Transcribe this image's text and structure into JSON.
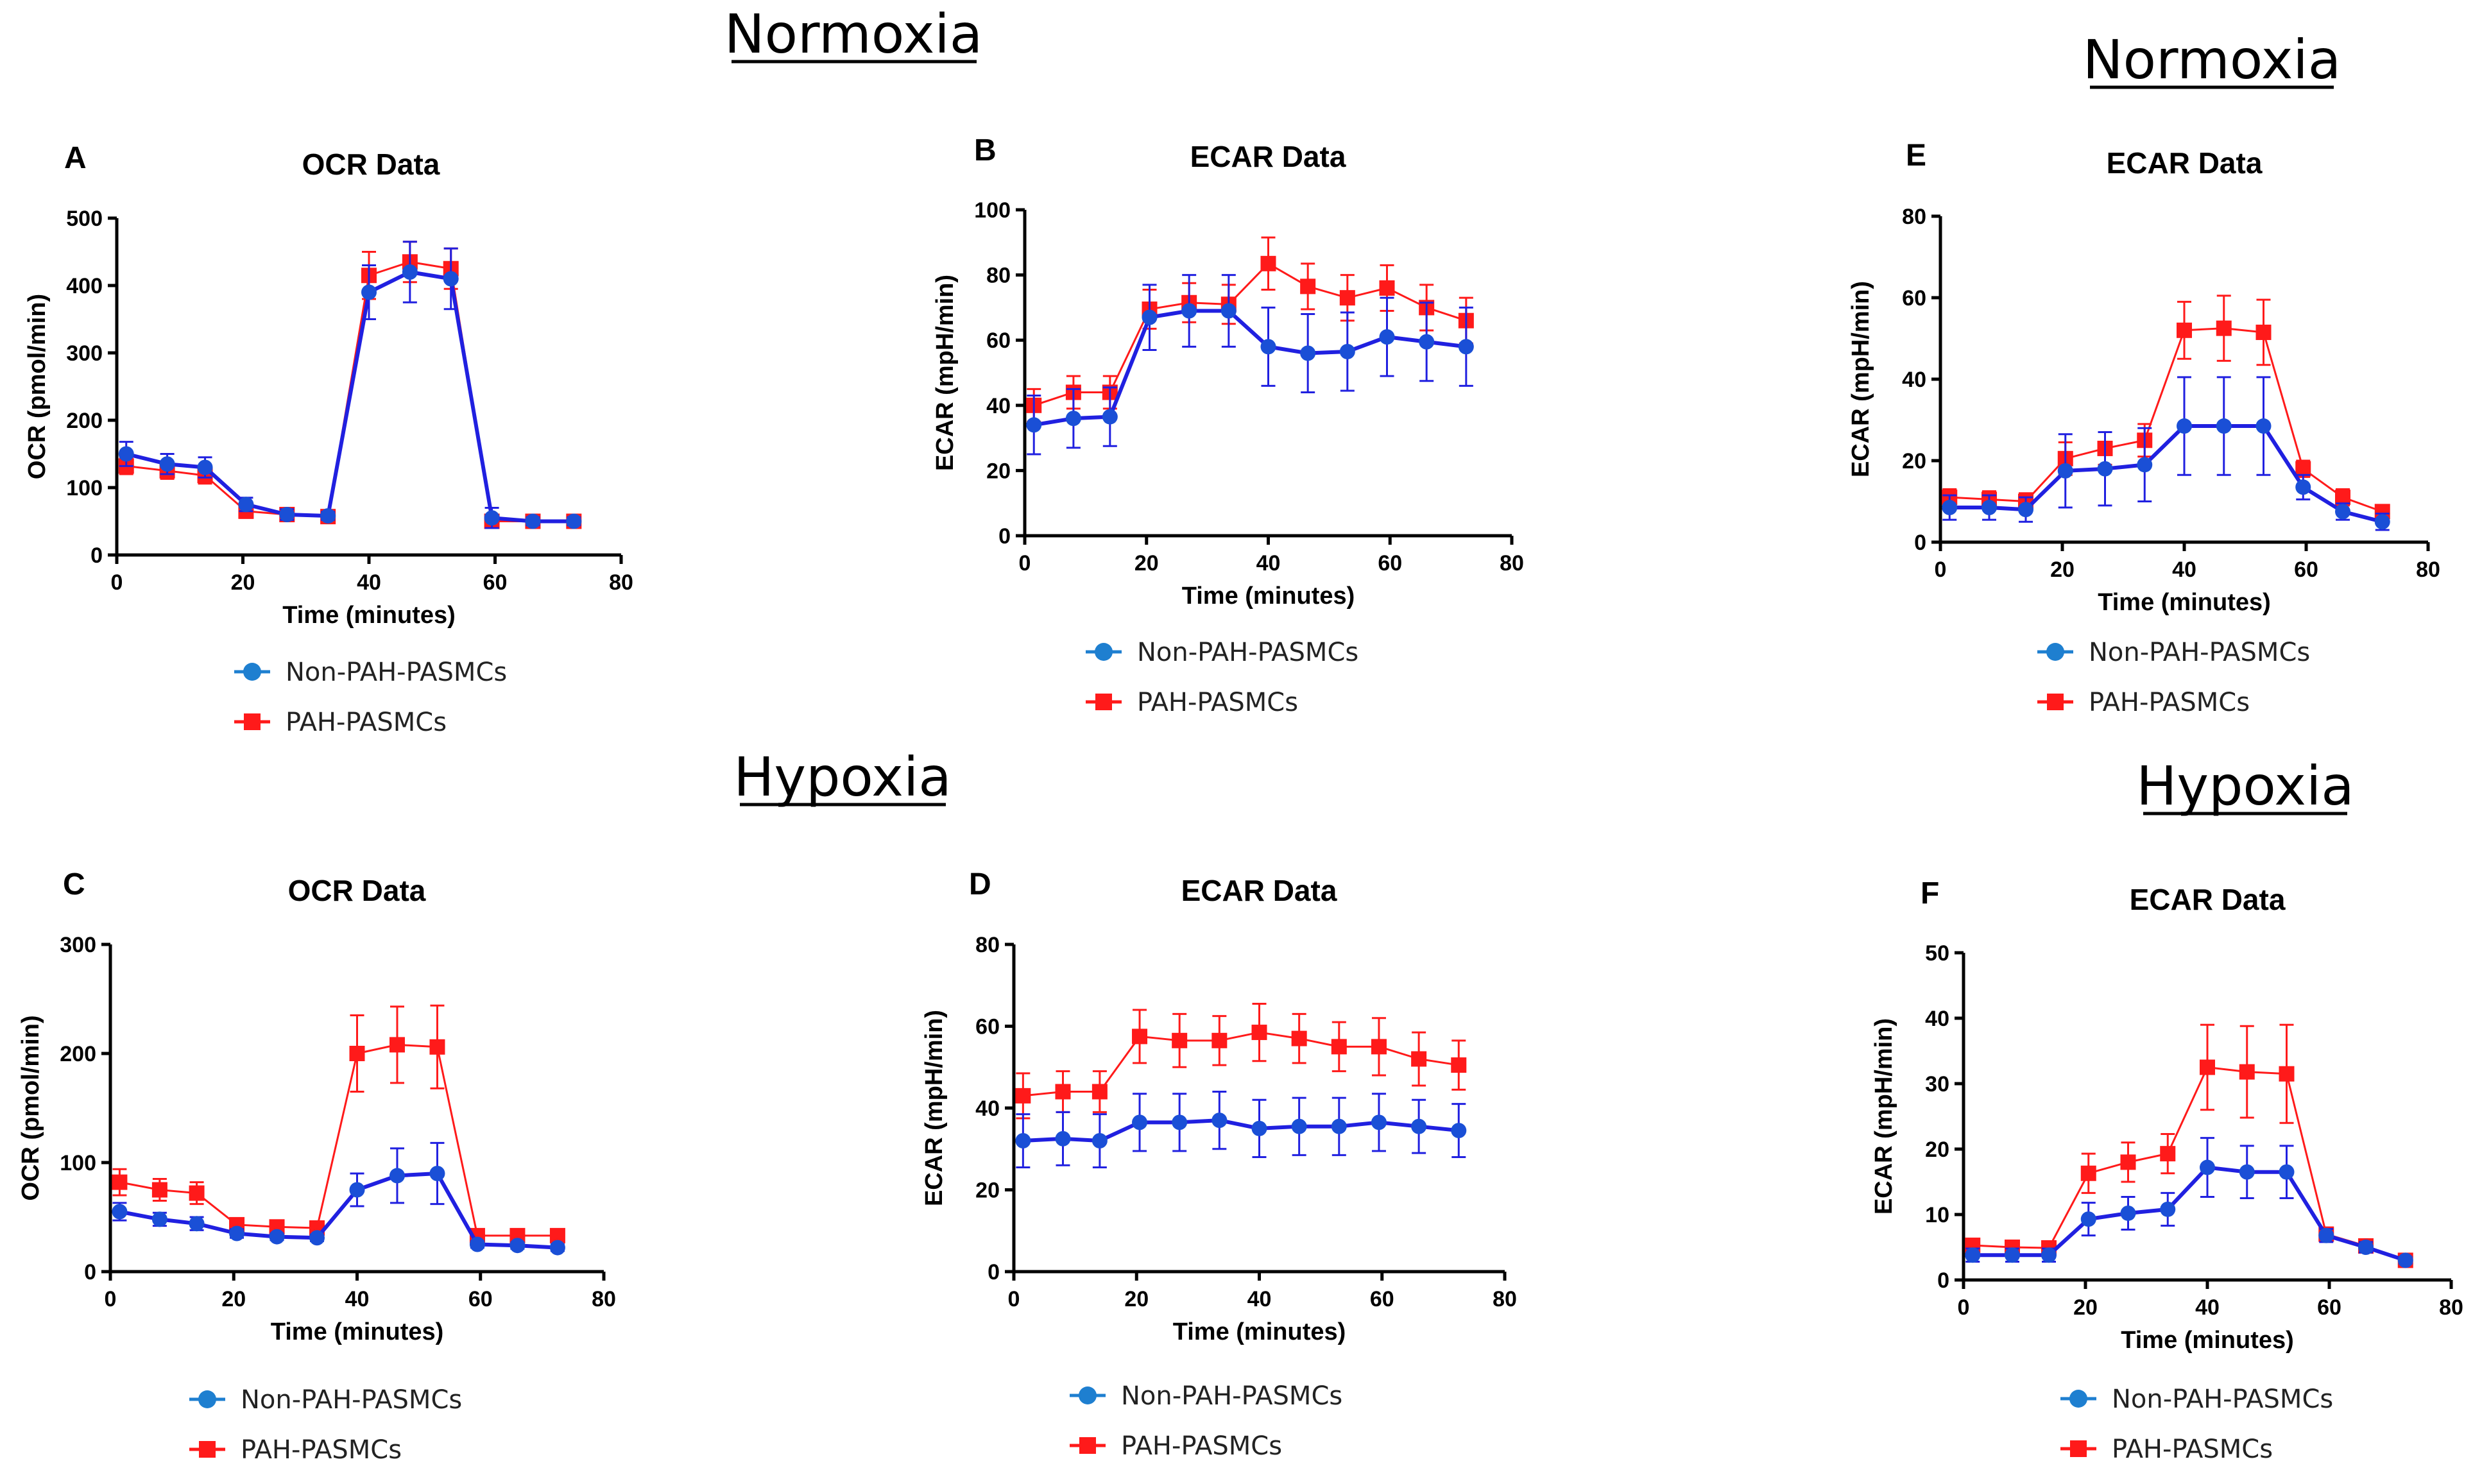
{
  "headings": {
    "top_left": "Normoxia",
    "top_right": "Normoxia",
    "bottom_left": "Hypoxia",
    "bottom_right": "Hypoxia"
  },
  "colors": {
    "non_pah_marker": "#1a4fd6",
    "non_pah_line": "#2020e0",
    "non_pah_legend": "#1e7fd0",
    "pah": "#ff1a1a"
  },
  "legend": {
    "non_pah": "Non-PAH-PASMCs",
    "pah": "PAH-PASMCs"
  },
  "chart_data": [
    {
      "panel": "A",
      "type": "line",
      "title": "OCR Data",
      "xlabel": "Time (minutes)",
      "ylabel": "OCR (pmol/min)",
      "xlim": [
        0,
        80
      ],
      "ylim": [
        0,
        500
      ],
      "xticks": [
        0,
        20,
        40,
        60,
        80
      ],
      "yticks": [
        0,
        100,
        200,
        300,
        400,
        500
      ],
      "x": [
        1.5,
        8,
        14,
        20.5,
        27,
        33.5,
        40,
        46.5,
        53,
        59.5,
        66,
        72.5
      ],
      "series": [
        {
          "name": "Non-PAH-PASMCs",
          "values": [
            150,
            135,
            130,
            75,
            60,
            58,
            390,
            420,
            410,
            55,
            50,
            50
          ],
          "errors": [
            18,
            15,
            15,
            10,
            8,
            6,
            40,
            45,
            45,
            15,
            6,
            6
          ]
        },
        {
          "name": "PAH-PASMCs",
          "values": [
            132,
            125,
            118,
            65,
            60,
            57,
            415,
            435,
            425,
            50,
            50,
            50
          ],
          "errors": [
            12,
            12,
            12,
            10,
            8,
            5,
            35,
            30,
            30,
            8,
            5,
            5
          ]
        }
      ]
    },
    {
      "panel": "B",
      "type": "line",
      "title": "ECAR Data",
      "xlabel": "Time (minutes)",
      "ylabel": "ECAR (mpH/min)",
      "xlim": [
        0,
        80
      ],
      "ylim": [
        0,
        100
      ],
      "xticks": [
        0,
        20,
        40,
        60,
        80
      ],
      "yticks": [
        0,
        20,
        40,
        60,
        80,
        100
      ],
      "x": [
        1.5,
        8,
        14,
        20.5,
        27,
        33.5,
        40,
        46.5,
        53,
        59.5,
        66,
        72.5
      ],
      "series": [
        {
          "name": "Non-PAH-PASMCs",
          "values": [
            34,
            36,
            36.5,
            67,
            69,
            69,
            58,
            56,
            56.5,
            61,
            59.5,
            58
          ],
          "errors": [
            9,
            9,
            9,
            10,
            11,
            11,
            12,
            12,
            12,
            12,
            12,
            12
          ]
        },
        {
          "name": "PAH-PASMCs",
          "values": [
            40,
            44,
            44,
            69.5,
            71.5,
            71,
            83.5,
            76.5,
            73,
            76,
            70,
            66
          ],
          "errors": [
            5,
            5,
            5,
            6,
            6,
            6,
            8,
            7,
            7,
            7,
            7,
            7
          ]
        }
      ]
    },
    {
      "panel": "E",
      "type": "line",
      "title": "ECAR Data",
      "xlabel": "Time (minutes)",
      "ylabel": "ECAR (mpH/min)",
      "xlim": [
        0,
        80
      ],
      "ylim": [
        0,
        80
      ],
      "xticks": [
        0,
        20,
        40,
        60,
        80
      ],
      "yticks": [
        0,
        20,
        40,
        60,
        80
      ],
      "x": [
        1.5,
        8,
        14,
        20.5,
        27,
        33.5,
        40,
        46.5,
        53,
        59.5,
        66,
        72.5
      ],
      "series": [
        {
          "name": "Non-PAH-PASMCs",
          "values": [
            8.5,
            8.5,
            8,
            17.5,
            18,
            19,
            28.5,
            28.5,
            28.5,
            13.5,
            7.5,
            5
          ],
          "errors": [
            3,
            3,
            3,
            9,
            9,
            9,
            12,
            12,
            12,
            3,
            2,
            2
          ]
        },
        {
          "name": "PAH-PASMCs",
          "values": [
            11,
            10.5,
            10,
            20.5,
            23,
            25,
            52,
            52.5,
            51.5,
            18,
            11,
            7.5
          ],
          "errors": [
            2,
            2,
            2,
            4,
            4,
            4,
            7,
            8,
            8,
            2,
            2,
            1
          ]
        }
      ]
    },
    {
      "panel": "C",
      "type": "line",
      "title": "OCR Data",
      "xlabel": "Time (minutes)",
      "ylabel": "OCR (pmol/min)",
      "xlim": [
        0,
        80
      ],
      "ylim": [
        0,
        300
      ],
      "xticks": [
        0,
        20,
        40,
        60,
        80
      ],
      "yticks": [
        0,
        100,
        200,
        300
      ],
      "x": [
        1.5,
        8,
        14,
        20.5,
        27,
        33.5,
        40,
        46.5,
        53,
        59.5,
        66,
        72.5
      ],
      "series": [
        {
          "name": "Non-PAH-PASMCs",
          "values": [
            55,
            48,
            44,
            35,
            32,
            31,
            75,
            88,
            90,
            25,
            24,
            22
          ],
          "errors": [
            8,
            6,
            6,
            4,
            3,
            3,
            15,
            25,
            28,
            3,
            3,
            3
          ]
        },
        {
          "name": "PAH-PASMCs",
          "values": [
            82,
            75,
            72,
            43,
            41,
            40,
            200,
            208,
            206,
            33,
            33,
            33
          ],
          "errors": [
            12,
            10,
            10,
            6,
            5,
            5,
            35,
            35,
            38,
            5,
            5,
            5
          ]
        }
      ]
    },
    {
      "panel": "D",
      "type": "line",
      "title": "ECAR Data",
      "xlabel": "Time (minutes)",
      "ylabel": "ECAR (mpH/min)",
      "xlim": [
        0,
        80
      ],
      "ylim": [
        0,
        80
      ],
      "xticks": [
        0,
        20,
        40,
        60,
        80
      ],
      "yticks": [
        0,
        20,
        40,
        60,
        80
      ],
      "x": [
        1.5,
        8,
        14,
        20.5,
        27,
        33.5,
        40,
        46.5,
        53,
        59.5,
        66,
        72.5
      ],
      "series": [
        {
          "name": "Non-PAH-PASMCs",
          "values": [
            32,
            32.5,
            32,
            36.5,
            36.5,
            37,
            35,
            35.5,
            35.5,
            36.5,
            35.5,
            34.5
          ],
          "errors": [
            6.5,
            6.5,
            6.5,
            7,
            7,
            7,
            7,
            7,
            7,
            7,
            6.5,
            6.5
          ]
        },
        {
          "name": "PAH-PASMCs",
          "values": [
            43,
            44,
            44,
            57.5,
            56.5,
            56.5,
            58.5,
            57,
            55,
            55,
            52,
            50.5
          ],
          "errors": [
            5.5,
            5,
            5,
            6.5,
            6.5,
            6,
            7,
            6,
            6,
            7,
            6.5,
            6
          ]
        }
      ]
    },
    {
      "panel": "F",
      "type": "line",
      "title": "ECAR Data",
      "xlabel": "Time (minutes)",
      "ylabel": "ECAR (mpH/min)",
      "xlim": [
        0,
        80
      ],
      "ylim": [
        0,
        50
      ],
      "xticks": [
        0,
        20,
        40,
        60,
        80
      ],
      "yticks": [
        0,
        10,
        20,
        30,
        40,
        50
      ],
      "x": [
        1.5,
        8,
        14,
        20.5,
        27,
        33.5,
        40,
        46.5,
        53,
        59.5,
        66,
        72.5
      ],
      "series": [
        {
          "name": "Non-PAH-PASMCs",
          "values": [
            3.8,
            3.8,
            3.8,
            9.3,
            10.2,
            10.8,
            17.2,
            16.5,
            16.5,
            6.8,
            5,
            3
          ],
          "errors": [
            1,
            1,
            1,
            2.5,
            2.5,
            2.5,
            4.5,
            4,
            4,
            1,
            0.8,
            0.5
          ]
        },
        {
          "name": "PAH-PASMCs",
          "values": [
            5.3,
            5,
            4.9,
            16.3,
            18,
            19.3,
            32.5,
            31.8,
            31.5,
            7,
            5.2,
            3
          ],
          "errors": [
            1,
            1,
            1,
            3,
            3,
            3,
            6.5,
            7,
            7.5,
            1,
            0.8,
            0.5
          ]
        }
      ]
    }
  ]
}
